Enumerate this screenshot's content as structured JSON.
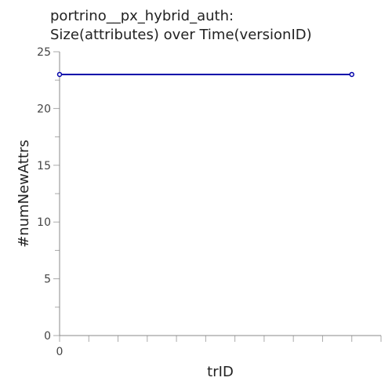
{
  "chart_data": {
    "type": "line",
    "title_lines": [
      "portrino__px_hybrid_auth:",
      "Size(attributes) over Time(versionID)"
    ],
    "xlabel": "trID",
    "ylabel": "#numNewAttrs",
    "x_tick_labels": [
      "0"
    ],
    "y_ticks": [
      0,
      5,
      10,
      15,
      20,
      25
    ],
    "ylim": [
      0,
      25
    ],
    "xlim": [
      0,
      11
    ],
    "grid": false,
    "series": [
      {
        "x": [
          0,
          10
        ],
        "values": [
          23,
          23
        ],
        "color": "#0000aa"
      }
    ]
  }
}
